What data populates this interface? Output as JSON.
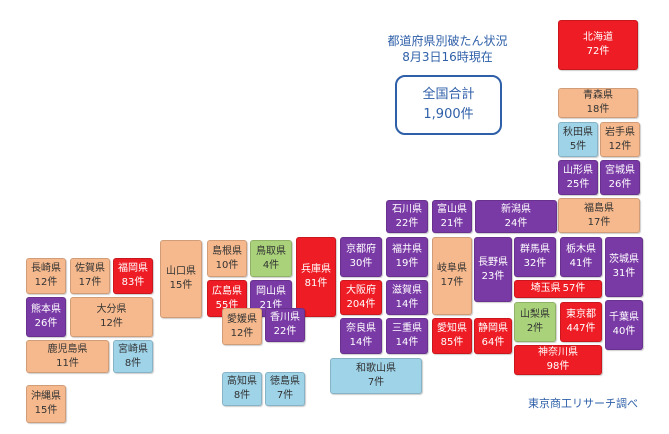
{
  "header": {
    "title": "都道府県別破たん状況",
    "subtitle": "8月3日16時現在"
  },
  "total": {
    "label": "全国合計",
    "count": "1,900件"
  },
  "source": "東京商工リサーチ調べ",
  "prefectures": [
    {
      "name": "北海道",
      "count": "72件",
      "color": "#ee1c24"
    },
    {
      "name": "青森県",
      "count": "18件",
      "color": "#f6b98d"
    },
    {
      "name": "秋田県",
      "count": "5件",
      "color": "#9ed3e8"
    },
    {
      "name": "岩手県",
      "count": "12件",
      "color": "#f6b98d"
    },
    {
      "name": "山形県",
      "count": "25件",
      "color": "#7a3aa6"
    },
    {
      "name": "宮城県",
      "count": "26件",
      "color": "#7a3aa6"
    },
    {
      "name": "福島県",
      "count": "17件",
      "color": "#f6b98d"
    },
    {
      "name": "新潟県",
      "count": "24件",
      "color": "#7a3aa6"
    },
    {
      "name": "富山県",
      "count": "21件",
      "color": "#7a3aa6"
    },
    {
      "name": "石川県",
      "count": "22件",
      "color": "#7a3aa6"
    },
    {
      "name": "群馬県",
      "count": "32件",
      "color": "#7a3aa6"
    },
    {
      "name": "栃木県",
      "count": "41件",
      "color": "#7a3aa6"
    },
    {
      "name": "茨城県",
      "count": "31件",
      "color": "#7a3aa6"
    },
    {
      "name": "長野県",
      "count": "23件",
      "color": "#7a3aa6"
    },
    {
      "name": "埼玉県",
      "count": "57件",
      "color": "#ee1c24"
    },
    {
      "name": "山梨県",
      "count": "2件",
      "color": "#a9d27a"
    },
    {
      "name": "東京都",
      "count": "447件",
      "color": "#ee1c24"
    },
    {
      "name": "千葉県",
      "count": "40件",
      "color": "#7a3aa6"
    },
    {
      "name": "神奈川県",
      "count": "98件",
      "color": "#ee1c24"
    },
    {
      "name": "岐阜県",
      "count": "17件",
      "color": "#f6b98d"
    },
    {
      "name": "福井県",
      "count": "19件",
      "color": "#7a3aa6"
    },
    {
      "name": "京都府",
      "count": "30件",
      "color": "#7a3aa6"
    },
    {
      "name": "兵庫県",
      "count": "81件",
      "color": "#ee1c24"
    },
    {
      "name": "大阪府",
      "count": "204件",
      "color": "#ee1c24"
    },
    {
      "name": "滋賀県",
      "count": "14件",
      "color": "#7a3aa6"
    },
    {
      "name": "奈良県",
      "count": "14件",
      "color": "#7a3aa6"
    },
    {
      "name": "三重県",
      "count": "14件",
      "color": "#7a3aa6"
    },
    {
      "name": "愛知県",
      "count": "85件",
      "color": "#ee1c24"
    },
    {
      "name": "静岡県",
      "count": "64件",
      "color": "#ee1c24"
    },
    {
      "name": "和歌山県",
      "count": "7件",
      "color": "#9ed3e8"
    },
    {
      "name": "鳥取県",
      "count": "4件",
      "color": "#a9d27a"
    },
    {
      "name": "島根県",
      "count": "10件",
      "color": "#f6b98d"
    },
    {
      "name": "岡山県",
      "count": "21件",
      "color": "#7a3aa6"
    },
    {
      "name": "広島県",
      "count": "55件",
      "color": "#ee1c24"
    },
    {
      "name": "山口県",
      "count": "15件",
      "color": "#f6b98d"
    },
    {
      "name": "愛媛県",
      "count": "12件",
      "color": "#f6b98d"
    },
    {
      "name": "香川県",
      "count": "22件",
      "color": "#7a3aa6"
    },
    {
      "name": "高知県",
      "count": "8件",
      "color": "#9ed3e8"
    },
    {
      "name": "徳島県",
      "count": "7件",
      "color": "#9ed3e8"
    },
    {
      "name": "長崎県",
      "count": "12件",
      "color": "#f6b98d"
    },
    {
      "name": "佐賀県",
      "count": "17件",
      "color": "#f6b98d"
    },
    {
      "name": "福岡県",
      "count": "83件",
      "color": "#ee1c24"
    },
    {
      "name": "熊本県",
      "count": "26件",
      "color": "#7a3aa6"
    },
    {
      "name": "大分県",
      "count": "12件",
      "color": "#f6b98d"
    },
    {
      "name": "鹿児島県",
      "count": "11件",
      "color": "#f6b98d"
    },
    {
      "name": "宮崎県",
      "count": "8件",
      "color": "#9ed3e8"
    },
    {
      "name": "沖縄県",
      "count": "15件",
      "color": "#f6b98d"
    }
  ]
}
